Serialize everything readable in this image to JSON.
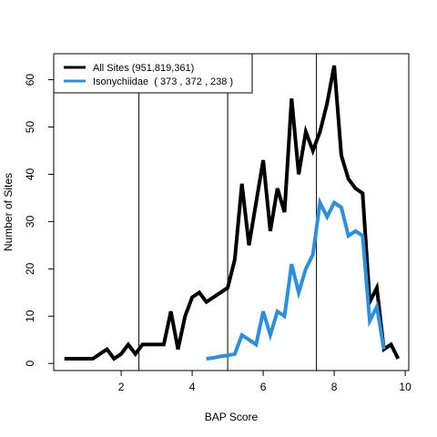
{
  "chart_data": {
    "type": "line",
    "title": "",
    "xlabel": "BAP Score",
    "ylabel": "Number of Sites",
    "xlim": [
      0.1,
      10.1
    ],
    "ylim": [
      -1.5,
      65.5
    ],
    "xticks": [
      2,
      4,
      6,
      8,
      10
    ],
    "yticks": [
      0,
      10,
      20,
      30,
      40,
      50,
      60
    ],
    "vlines": [
      2.5,
      5,
      7.5
    ],
    "legend_position": "top-left",
    "grid": false,
    "series": [
      {
        "name": "All Sites (951,819,361)",
        "color": "#000000",
        "x": [
          0.4,
          0.6,
          0.8,
          1.0,
          1.2,
          1.4,
          1.6,
          1.8,
          2.0,
          2.2,
          2.4,
          2.6,
          2.8,
          3.0,
          3.2,
          3.4,
          3.6,
          3.8,
          4.0,
          4.2,
          4.4,
          4.6,
          4.8,
          5.0,
          5.2,
          5.4,
          5.6,
          5.8,
          6.0,
          6.2,
          6.4,
          6.6,
          6.8,
          7.0,
          7.2,
          7.4,
          7.6,
          7.8,
          8.0,
          8.2,
          8.4,
          8.6,
          8.8,
          9.0,
          9.2,
          9.4,
          9.6,
          9.8
        ],
        "y": [
          1,
          1,
          1,
          1,
          1,
          2,
          3,
          1,
          2,
          4,
          2,
          4,
          4,
          4,
          4,
          11,
          3,
          10,
          14,
          15,
          13,
          14,
          15,
          16,
          22,
          38,
          25,
          34,
          43,
          28,
          37,
          32,
          56,
          40,
          49,
          45,
          49,
          55,
          63,
          44,
          39,
          37,
          36,
          13,
          16,
          3,
          4,
          1
        ]
      },
      {
        "name": "Isonychiidae  ( 373 , 372 , 238 )",
        "color": "#2b8fe0",
        "x": [
          4.4,
          4.6,
          4.8,
          5.0,
          5.2,
          5.4,
          5.6,
          5.8,
          6.0,
          6.2,
          6.4,
          6.6,
          6.8,
          7.0,
          7.2,
          7.4,
          7.6,
          7.8,
          8.0,
          8.2,
          8.4,
          8.6,
          8.8,
          9.0,
          9.2,
          9.4
        ],
        "y": [
          1,
          1.2,
          1.5,
          1.7,
          2,
          6,
          5,
          4,
          11,
          6,
          11,
          10,
          21,
          15,
          20,
          23,
          34,
          31,
          34,
          33,
          27,
          28,
          27,
          9,
          12,
          3
        ]
      }
    ]
  }
}
